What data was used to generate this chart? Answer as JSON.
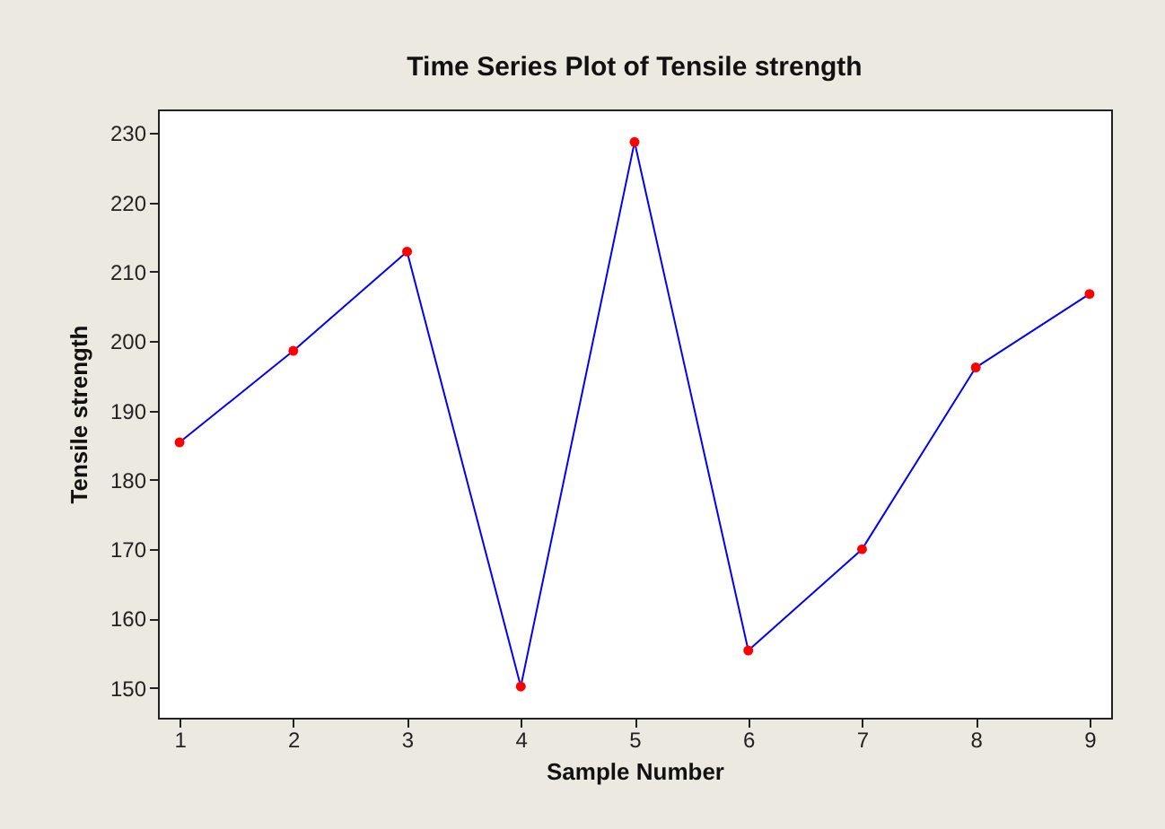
{
  "chart_data": {
    "type": "line",
    "title": "Time Series Plot of Tensile strength",
    "xlabel": "Sample Number",
    "ylabel": "Tensile strength",
    "x": [
      1,
      2,
      3,
      4,
      5,
      6,
      7,
      8,
      9
    ],
    "series": [
      {
        "color": "#0000ff",
        "values": [
          185.4,
          198.6,
          212.9,
          150.2,
          228.7,
          155.4,
          170,
          196.2,
          206.8
        ]
      }
    ],
    "xlim": [
      0.81,
      9.19
    ],
    "xticks": [
      1,
      2,
      3,
      4,
      5,
      6,
      7,
      8,
      9
    ],
    "ylim": [
      145.7,
      233.4
    ],
    "yticks": [
      150,
      160,
      170,
      180,
      190,
      200,
      210,
      220,
      230
    ],
    "grid": false,
    "marker": "circle",
    "line_style": "solid"
  }
}
